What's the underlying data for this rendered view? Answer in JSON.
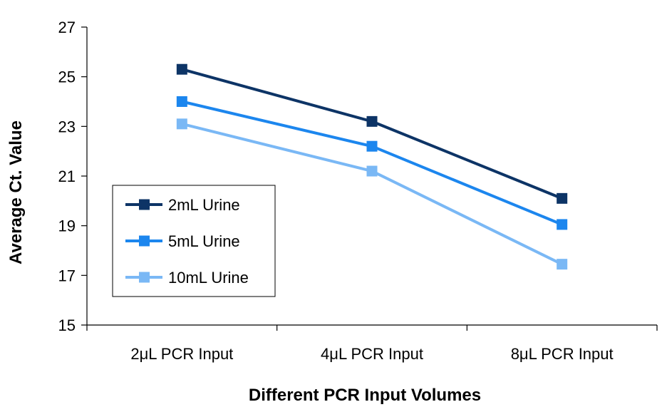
{
  "chart_data": {
    "type": "line",
    "title": "",
    "xlabel": "Different PCR Input Volumes",
    "ylabel": "Average Ct. Value",
    "categories": [
      "2μL PCR Input",
      "4μL PCR Input",
      "8μL PCR Input"
    ],
    "ylim": [
      15,
      27
    ],
    "yticks": [
      "15",
      "17",
      "19",
      "21",
      "23",
      "25",
      "27"
    ],
    "legend_position": "left",
    "series": [
      {
        "name": "2mL Urine",
        "color": "#0d3466",
        "values": [
          25.3,
          23.2,
          20.1
        ]
      },
      {
        "name": "5mL Urine",
        "color": "#1c86ee",
        "values": [
          24.0,
          22.2,
          19.05
        ]
      },
      {
        "name": "10mL Urine",
        "color": "#7ab8f5",
        "values": [
          23.1,
          21.2,
          17.45
        ]
      }
    ]
  }
}
